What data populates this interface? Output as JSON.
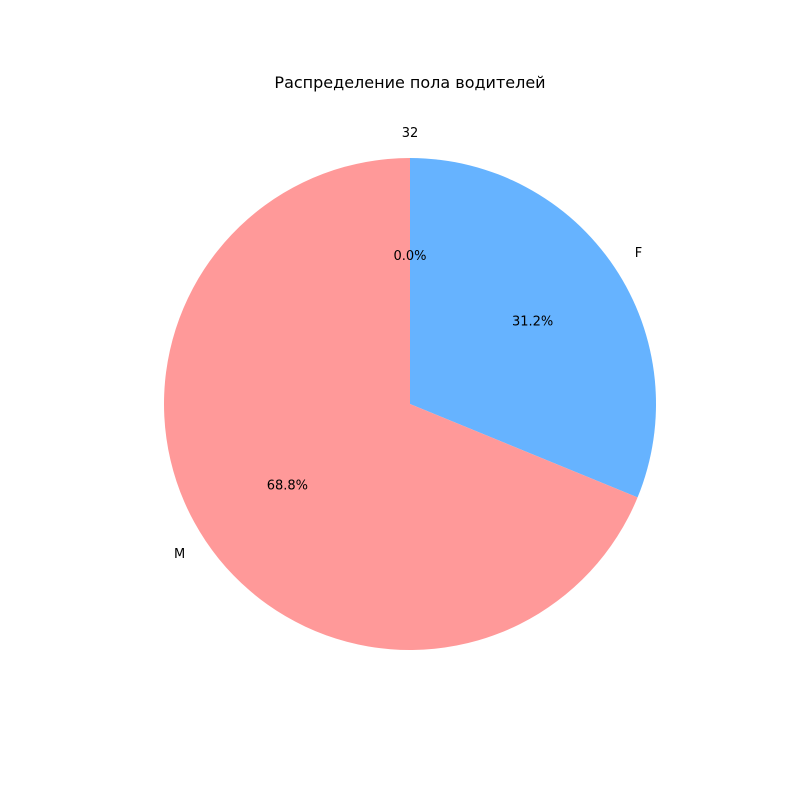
{
  "chart_data": {
    "type": "pie",
    "title": "Распределение пола водителей",
    "slices": [
      {
        "label": "F",
        "value": 31.2,
        "pct_label": "31.2%",
        "color": "#66b3ff"
      },
      {
        "label": "M",
        "value": 68.8,
        "pct_label": "68.8%",
        "color": "#ff9999"
      },
      {
        "label": "32",
        "value": 0.0,
        "pct_label": "0.0%",
        "color": "#99ff99"
      }
    ],
    "start_angle_deg": 90,
    "direction": "clockwise"
  }
}
